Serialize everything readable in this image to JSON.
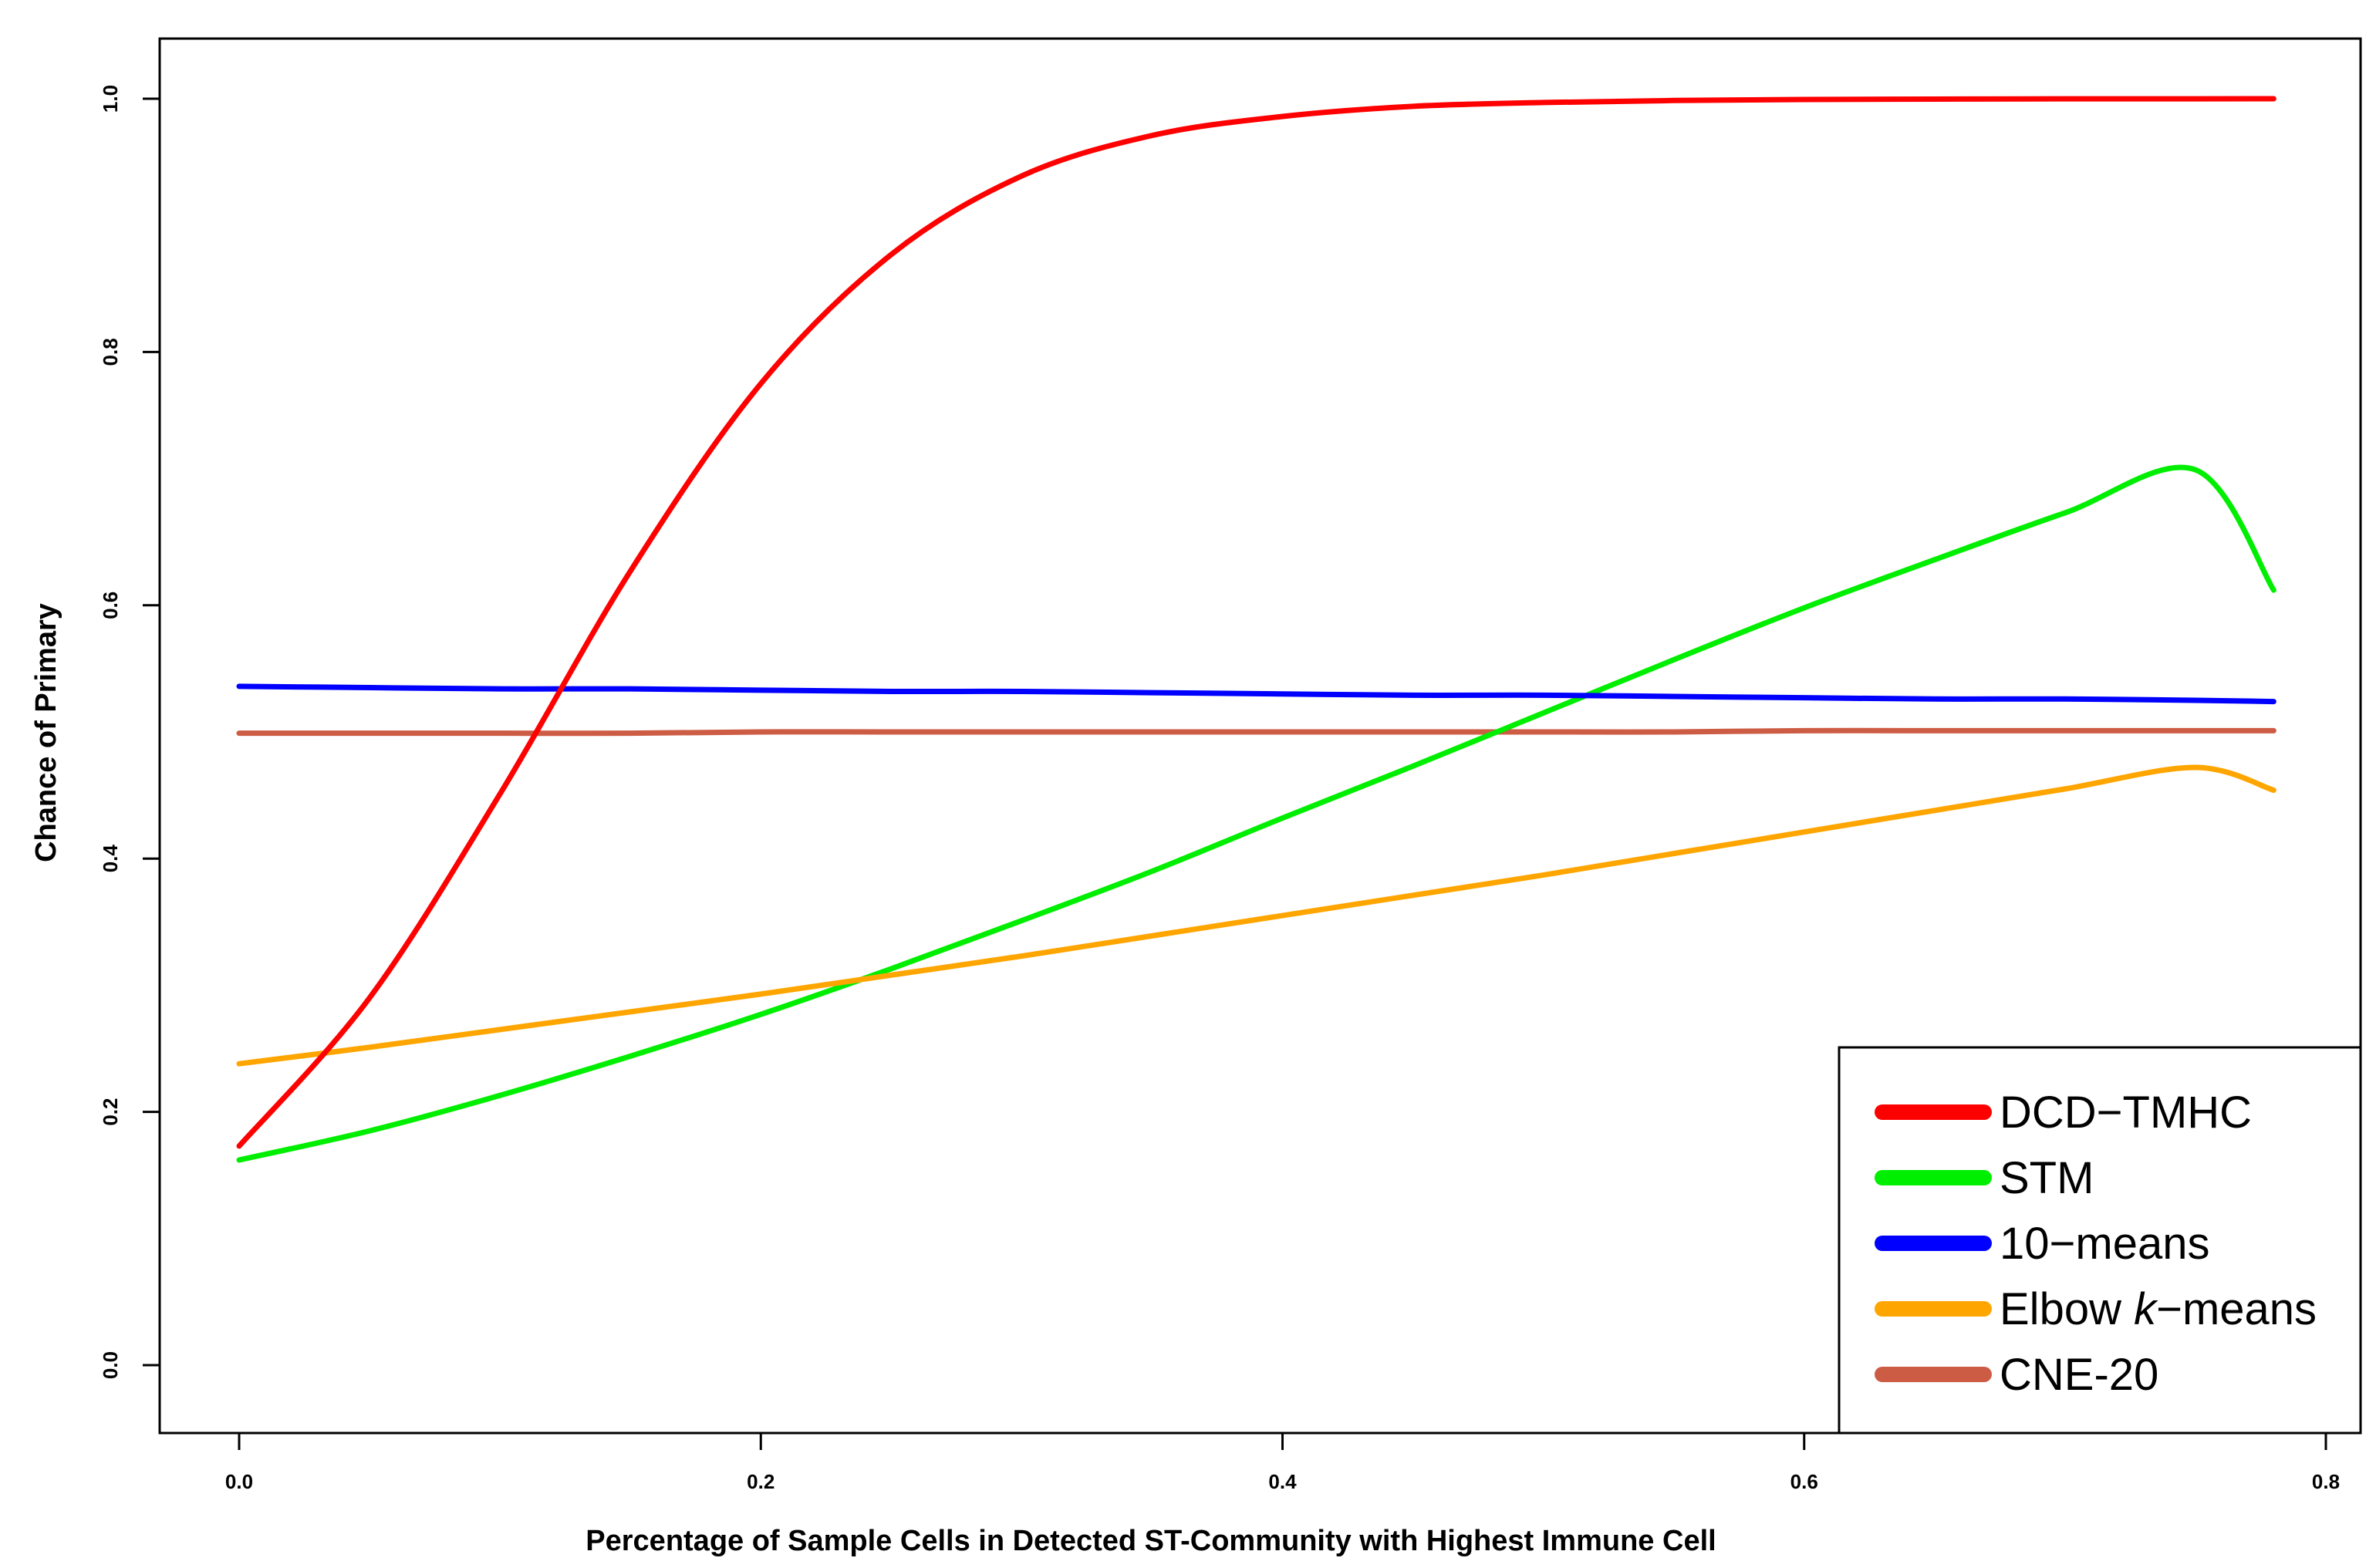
{
  "chart_data": {
    "type": "line",
    "title": "",
    "xlabel": "Percentage of Sample Cells in Detected ST-Community with Highest Immune Cell",
    "ylabel": "Chance of Primary",
    "xlim": [
      -0.08,
      0.81
    ],
    "ylim": [
      -0.05,
      1.05
    ],
    "x_ticks": [
      0.0,
      0.2,
      0.4,
      0.6,
      0.8
    ],
    "x_tick_labels": [
      "0.0",
      "0.2",
      "0.4",
      "0.6",
      "0.8"
    ],
    "y_ticks": [
      0.0,
      0.2,
      0.4,
      0.6,
      0.8,
      1.0
    ],
    "y_tick_labels": [
      "0.0",
      "0.2",
      "0.4",
      "0.6",
      "0.8",
      "1.0"
    ],
    "grid": false,
    "legend_position": "bottom-right",
    "x": [
      0.0,
      0.05,
      0.1,
      0.15,
      0.2,
      0.25,
      0.3,
      0.35,
      0.4,
      0.45,
      0.5,
      0.55,
      0.6,
      0.65,
      0.7,
      0.75,
      0.78
    ],
    "series": [
      {
        "name": "DCD−TMHC",
        "color": "#ff0000",
        "values": [
          0.173,
          0.29,
          0.451,
          0.627,
          0.775,
          0.877,
          0.939,
          0.971,
          0.986,
          0.994,
          0.997,
          0.9986,
          0.9994,
          0.9997,
          0.9999,
          0.9999,
          1.0
        ]
      },
      {
        "name": "STM",
        "color": "#00ee00",
        "values": [
          0.162,
          0.185,
          0.213,
          0.244,
          0.277,
          0.313,
          0.351,
          0.39,
          0.432,
          0.473,
          0.515,
          0.557,
          0.598,
          0.636,
          0.673,
          0.707,
          0.612
        ]
      },
      {
        "name": "10−means",
        "color": "#0000ff",
        "values": [
          0.536,
          0.535,
          0.534,
          0.534,
          0.533,
          0.532,
          0.532,
          0.531,
          0.53,
          0.529,
          0.529,
          0.528,
          0.527,
          0.526,
          0.526,
          0.525,
          0.524
        ]
      },
      {
        "name": "Elbow k−means",
        "name_prefix": "Elbow ",
        "name_italic": "k",
        "name_suffix": "−means",
        "color": "#ffa500",
        "values": [
          0.238,
          0.251,
          0.265,
          0.279,
          0.293,
          0.308,
          0.323,
          0.339,
          0.355,
          0.371,
          0.387,
          0.404,
          0.421,
          0.438,
          0.455,
          0.472,
          0.454
        ]
      },
      {
        "name": "CNE-20",
        "color": "#cd5c45",
        "values": [
          0.499,
          0.499,
          0.499,
          0.499,
          0.5,
          0.5,
          0.5,
          0.5,
          0.5,
          0.5,
          0.5,
          0.5,
          0.501,
          0.501,
          0.501,
          0.501,
          0.501
        ]
      }
    ]
  }
}
